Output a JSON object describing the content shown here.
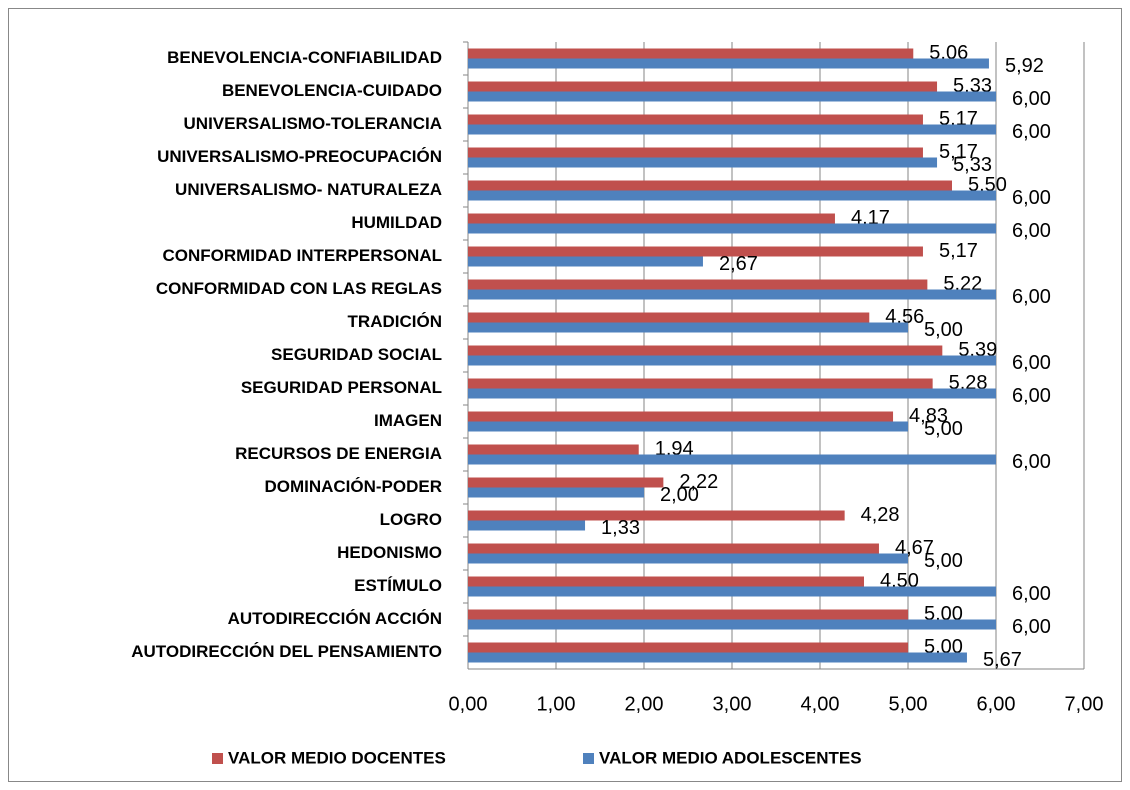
{
  "chart_data": {
    "type": "bar",
    "orientation": "horizontal",
    "categories": [
      "BENEVOLENCIA-CONFIABILIDAD",
      "BENEVOLENCIA-CUIDADO",
      "UNIVERSALISMO-TOLERANCIA",
      "UNIVERSALISMO-PREOCUPACIÓN",
      "UNIVERSALISMO- NATURALEZA",
      "HUMILDAD",
      "CONFORMIDAD INTERPERSONAL",
      "CONFORMIDAD CON LAS REGLAS",
      "TRADICIÓN",
      "SEGURIDAD SOCIAL",
      "SEGURIDAD PERSONAL",
      "IMAGEN",
      "RECURSOS DE ENERGIA",
      "DOMINACIÓN-PODER",
      "LOGRO",
      "HEDONISMO",
      "ESTÍMULO",
      "AUTODIRECCIÓN ACCIÓN",
      "AUTODIRECCIÓN DEL PENSAMIENTO"
    ],
    "series": [
      {
        "name": "VALOR MEDIO DOCENTES",
        "color": "#c0504d",
        "values": [
          5.06,
          5.33,
          5.17,
          5.17,
          5.5,
          4.17,
          5.17,
          5.22,
          4.56,
          5.39,
          5.28,
          4.83,
          1.94,
          2.22,
          4.28,
          4.67,
          4.5,
          5.0,
          5.0
        ],
        "value_labels": [
          "5,06",
          "5,33",
          "5,17",
          "5,17",
          "5,50",
          "4,17",
          "5,17",
          "5,22",
          "4,56",
          "5,39",
          "5,28",
          "4,83",
          "1,94",
          "2,22",
          "4,28",
          "4,67",
          "4,50",
          "5,00",
          "5,00"
        ]
      },
      {
        "name": "VALOR MEDIO ADOLESCENTES",
        "color": "#4f81bd",
        "values": [
          5.92,
          6.0,
          6.0,
          5.33,
          6.0,
          6.0,
          2.67,
          6.0,
          5.0,
          6.0,
          6.0,
          5.0,
          6.0,
          2.0,
          1.33,
          5.0,
          6.0,
          6.0,
          5.67
        ],
        "value_labels": [
          "5,92",
          "6,00",
          "6,00",
          "5,33",
          "6,00",
          "6,00",
          "2,67",
          "6,00",
          "5,00",
          "6,00",
          "6,00",
          "5,00",
          "6,00",
          "2,00",
          "1,33",
          "5,00",
          "6,00",
          "6,00",
          "5,67"
        ]
      }
    ],
    "xlim": [
      0,
      7
    ],
    "xticks": [
      {
        "value": 0,
        "label": "0,00"
      },
      {
        "value": 1,
        "label": "1,00"
      },
      {
        "value": 2,
        "label": "2,00"
      },
      {
        "value": 3,
        "label": "3,00"
      },
      {
        "value": 4,
        "label": "4,00"
      },
      {
        "value": 5,
        "label": "5,00"
      },
      {
        "value": 6,
        "label": "6,00"
      },
      {
        "value": 7,
        "label": "7,00"
      }
    ],
    "grid": true,
    "legend": "bottom"
  }
}
